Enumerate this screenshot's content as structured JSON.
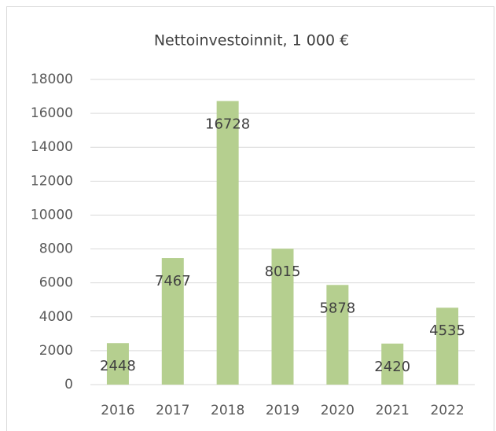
{
  "chart_data": {
    "type": "bar",
    "title": "Nettoinvestoinnit, 1 000 €",
    "categories": [
      "2016",
      "2017",
      "2018",
      "2019",
      "2020",
      "2021",
      "2022"
    ],
    "values": [
      2448,
      7467,
      16728,
      8015,
      5878,
      2420,
      4535
    ],
    "color": "#b5cf8f",
    "ylim": [
      0,
      18000
    ],
    "yticks": [
      0,
      2000,
      4000,
      6000,
      8000,
      10000,
      12000,
      14000,
      16000,
      18000
    ],
    "grid": true,
    "data_labels": true
  }
}
